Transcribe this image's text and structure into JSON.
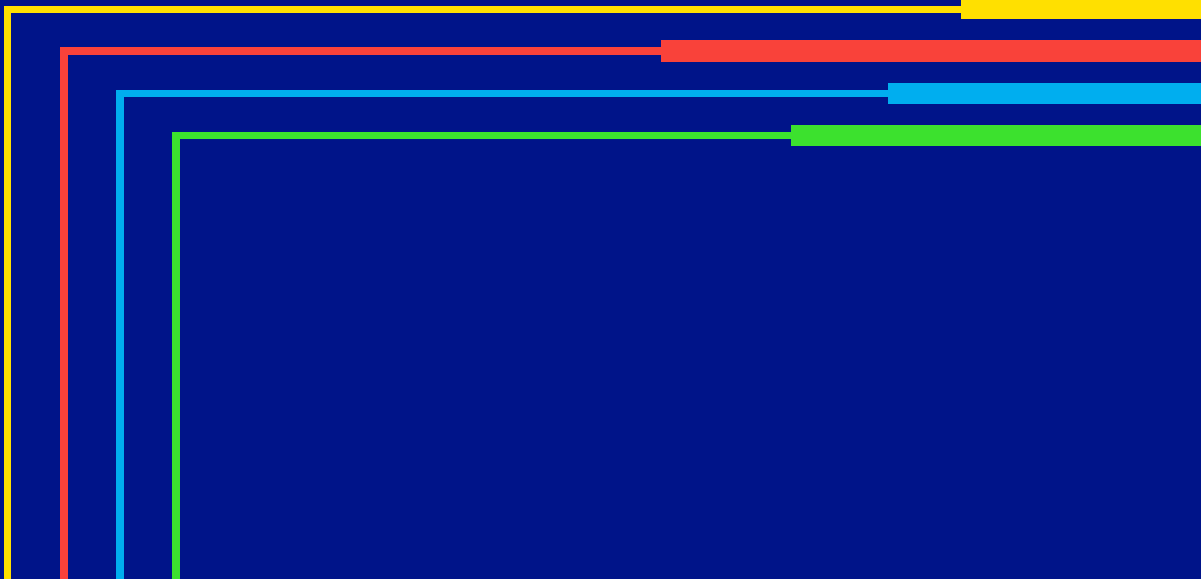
{
  "colors": {
    "background": "#001489",
    "yellow": "#FFE000",
    "red": "#F9423A",
    "blue": "#00AEEF",
    "green": "#3CE12E"
  },
  "lines": [
    {
      "id": "yellow",
      "color_key": "yellow"
    },
    {
      "id": "red",
      "color_key": "red"
    },
    {
      "id": "blue",
      "color_key": "blue"
    },
    {
      "id": "green",
      "color_key": "green"
    }
  ]
}
